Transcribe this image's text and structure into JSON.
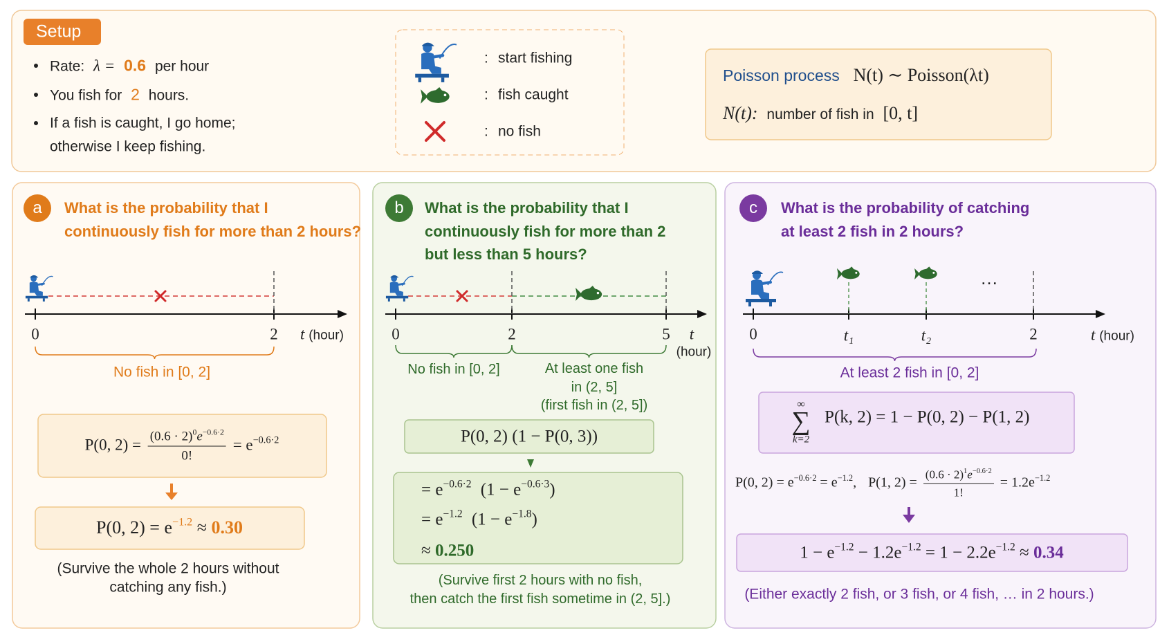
{
  "setup": {
    "title": "Setup",
    "rate_label": "Rate:",
    "rate_symbol": "λ =",
    "rate_value": "0.6",
    "rate_unit": "per hour",
    "duration_label": "You fish for",
    "duration_value": "2",
    "duration_unit": "hours.",
    "rule_lines": [
      "If a fish is caught, I go home;",
      "otherwise I keep fishing."
    ]
  },
  "legend": {
    "separator": ":",
    "items": [
      "start fishing",
      "fish caught",
      "no fish"
    ]
  },
  "poisson": {
    "label": "Poisson process",
    "formula": "N(t) ∼ Poisson(λt)",
    "def_symbol": "N(t):",
    "def_text": "number of fish in",
    "def_interval": "[0, t]"
  },
  "panel_a": {
    "badge": "a",
    "title_lines": [
      "What is the probability that I",
      "continuously fish for more than 2 hours?"
    ],
    "axis": {
      "ticks": [
        "0",
        "2"
      ],
      "label": "t",
      "unit": "(hour)"
    },
    "brace_label": "No fish in [0, 2]",
    "formula1": {
      "lhs": "P(0, 2) =",
      "numerator": [
        "(0.6 · 2)",
        "0",
        "e",
        "−0.6·2"
      ],
      "denominator": "0!",
      "rhs": [
        "= e",
        "−0.6·2"
      ]
    },
    "formula2": [
      "P(0, 2) = e",
      "−1.2",
      "≈",
      "0.30"
    ],
    "note_lines": [
      "(Survive the whole 2 hours without",
      "catching any fish.)"
    ]
  },
  "panel_b": {
    "badge": "b",
    "title_lines": [
      "What is the probability that I",
      "continuously fish for more than 2",
      "but less than 5 hours?"
    ],
    "axis": {
      "ticks": [
        "0",
        "2",
        "5"
      ],
      "label": "t",
      "unit": "(hour)"
    },
    "brace_labels": [
      [
        "No fish in [0, 2]"
      ],
      [
        "At least one fish",
        "in (2, 5]",
        "(first fish in (2, 5])"
      ]
    ],
    "formula1": "P(0, 2) (1 − P(0, 3))",
    "formula2": [
      [
        "= e",
        "−0.6·2",
        "(1 − e",
        "−0.6·3",
        ")"
      ],
      [
        "= e",
        "−1.2",
        "(1 − e",
        "−1.8",
        ")"
      ]
    ],
    "result": [
      "≈",
      "0.250"
    ],
    "note_lines": [
      "(Survive first 2 hours with no fish,",
      "then catch the first fish sometime in (2, 5].)"
    ]
  },
  "panel_c": {
    "badge": "c",
    "title_lines": [
      "What is the probability of catching",
      "at least 2 fish in 2 hours?"
    ],
    "axis": {
      "ticks": [
        "0",
        "t₁",
        "t₂",
        "2"
      ],
      "ellipsis": "…",
      "label": "t",
      "unit": "(hour)"
    },
    "brace_label": "At least 2 fish in [0, 2]",
    "sum": {
      "top": "∞",
      "sigma": "∑",
      "bottom": "k=2",
      "rest": "P(k, 2) = 1 − P(0, 2) − P(1, 2)"
    },
    "line": {
      "first": [
        "P(0, 2) = e",
        "−0.6·2",
        "= e",
        "−1.2",
        ",",
        "P(1, 2) ="
      ],
      "numerator": [
        "(0.6 · 2)",
        "1",
        "e",
        "−0.6·2"
      ],
      "denominator": "1!",
      "tail": [
        "= 1.2e",
        "−1.2"
      ]
    },
    "result": [
      "1 − e",
      "−1.2",
      "− 1.2e",
      "−1.2",
      "= 1 − 2.2e",
      "−1.2",
      "≈",
      "0.34"
    ],
    "note": "(Either exactly 2 fish, or 3 fish, or 4 fish, … in 2 hours.)"
  }
}
